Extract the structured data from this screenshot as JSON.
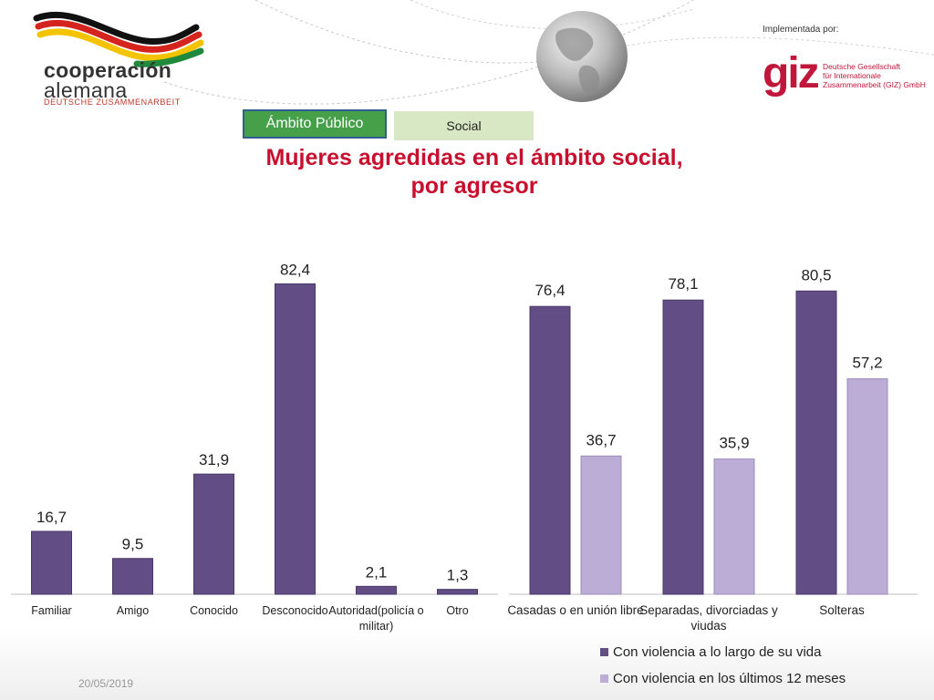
{
  "header": {
    "logo_line1": "cooperación",
    "logo_line2": "alemana",
    "logo_line3": "DEUTSCHE ZUSAMMENARBEIT",
    "implemented_by": "Implementada por:",
    "giz_word": "giz",
    "giz_line1": "Deutsche Gesellschaft",
    "giz_line2": "für Internationale",
    "giz_line3": "Zusammenarbeit (GIZ) GmbH"
  },
  "tabs": {
    "tab1": "Ámbito Público",
    "tab2": "Social"
  },
  "title": {
    "line1": "Mujeres agredidas en el ámbito social,",
    "line2": "por agresor"
  },
  "footer": {
    "date": "20/05/2019"
  },
  "colors": {
    "dark_bar": "#624d84",
    "light_bar": "#bcadd6",
    "title": "#c8102e"
  },
  "chart_data": [
    {
      "type": "bar",
      "categories": [
        "Familiar",
        "Amigo",
        "Conocido",
        "Desconocido",
        "Autoridad(policía o militar)",
        "Otro"
      ],
      "values": [
        16.7,
        9.5,
        31.9,
        82.4,
        2.1,
        1.3
      ],
      "labels": [
        "16,7",
        "9,5",
        "31,9",
        "82,4",
        "2,1",
        "1,3"
      ],
      "ylim": [
        0,
        90
      ]
    },
    {
      "type": "bar",
      "categories": [
        "Casadas o en unión libre",
        "Separadas, divorciadas y viudas",
        "Solteras"
      ],
      "series": [
        {
          "name": "Con violencia a lo largo de su vida",
          "values": [
            76.4,
            78.1,
            80.5
          ],
          "labels": [
            "76,4",
            "78,1",
            "80,5"
          ]
        },
        {
          "name": "Con violencia en los últimos 12 meses",
          "values": [
            36.7,
            35.9,
            57.2
          ],
          "labels": [
            "36,7",
            "35,9",
            "57,2"
          ]
        }
      ],
      "legend": "bottom",
      "ylim": [
        0,
        90
      ]
    }
  ]
}
